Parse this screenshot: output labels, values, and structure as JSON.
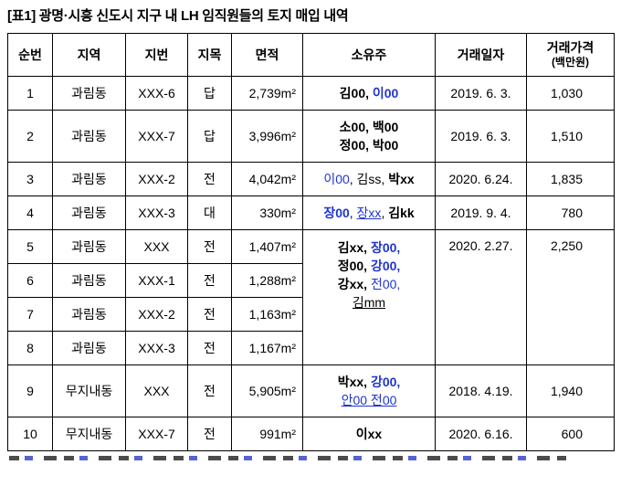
{
  "title": "[표1] 광명·시흥 신도시 지구 내 LH 임직원들의 토지 매입 내역",
  "colors": {
    "name_blue": "#1f35cf",
    "border": "#000000",
    "text": "#000000"
  },
  "table": {
    "headers": [
      {
        "t": "순번"
      },
      {
        "t": "지역"
      },
      {
        "t": "지번"
      },
      {
        "t": "지목"
      },
      {
        "t": "면적"
      },
      {
        "t": "소유주"
      },
      {
        "t": "거래일자"
      },
      {
        "t": "거래가격",
        "sub": "(백만원)"
      }
    ],
    "rows": [
      {
        "no": "1",
        "region": "과림동",
        "lot": "XXX-6",
        "cat": "답",
        "area": "2,739m²",
        "owner": {
          "span": 1,
          "lines": [
            [
              {
                "t": "김00,",
                "b": 1
              },
              {
                "t": " 이00",
                "c": 1,
                "b": 1
              }
            ]
          ]
        },
        "date": {
          "span": 1,
          "t": "2019. 6. 3."
        },
        "price": {
          "span": 1,
          "t": "1,030"
        }
      },
      {
        "no": "2",
        "region": "과림동",
        "lot": "XXX-7",
        "cat": "답",
        "area": "3,996m²",
        "owner": {
          "span": 1,
          "lines": [
            [
              {
                "t": "소00, 백00",
                "b": 1
              }
            ],
            [
              {
                "t": "정00, 박00",
                "b": 1
              }
            ]
          ]
        },
        "date": {
          "span": 1,
          "t": "2019. 6. 3."
        },
        "price": {
          "span": 1,
          "t": "1,510"
        }
      },
      {
        "no": "3",
        "region": "과림동",
        "lot": "XXX-2",
        "cat": "전",
        "area": "4,042m²",
        "owner": {
          "span": 1,
          "lines": [
            [
              {
                "t": "이00",
                "c": 1
              },
              {
                "t": ", 김ss, "
              },
              {
                "t": "박xx",
                "b": 1
              }
            ]
          ]
        },
        "date": {
          "span": 1,
          "t": "2020. 6.24."
        },
        "price": {
          "span": 1,
          "t": "1,835"
        }
      },
      {
        "no": "4",
        "region": "과림동",
        "lot": "XXX-3",
        "cat": "대",
        "area": "330m²",
        "owner": {
          "span": 1,
          "lines": [
            [
              {
                "t": "장00",
                "c": 1,
                "b": 1
              },
              {
                "t": ", "
              },
              {
                "t": "장xx",
                "c": 1,
                "u": 1
              },
              {
                "t": ", "
              },
              {
                "t": "김kk",
                "b": 1
              }
            ]
          ]
        },
        "date": {
          "span": 1,
          "t": "2019. 9. 4."
        },
        "price": {
          "span": 1,
          "t": "780"
        }
      },
      {
        "no": "5",
        "region": "과림동",
        "lot": "XXX",
        "cat": "전",
        "area": "1,407m²",
        "owner": {
          "span": 4,
          "lines": [
            [
              {
                "t": "김xx, ",
                "b": 1
              },
              {
                "t": "장00,",
                "c": 1,
                "b": 1
              }
            ],
            [
              {
                "t": "정00, ",
                "b": 1
              },
              {
                "t": "강00,",
                "c": 1,
                "b": 1
              }
            ],
            [
              {
                "t": "강xx, ",
                "b": 1
              },
              {
                "t": "전00,",
                "c": 1
              }
            ],
            [
              {
                "t": "김mm",
                "u": 1
              }
            ]
          ]
        },
        "date": {
          "span": 4,
          "t": "2020. 2.27."
        },
        "price": {
          "span": 4,
          "t": "2,250"
        }
      },
      {
        "no": "6",
        "region": "과림동",
        "lot": "XXX-1",
        "cat": "전",
        "area": "1,288m²"
      },
      {
        "no": "7",
        "region": "과림동",
        "lot": "XXX-2",
        "cat": "전",
        "area": "1,163m²"
      },
      {
        "no": "8",
        "region": "과림동",
        "lot": "XXX-3",
        "cat": "전",
        "area": "1,167m²"
      },
      {
        "no": "9",
        "region": "무지내동",
        "lot": "XXX",
        "cat": "전",
        "area": "5,905m²",
        "owner": {
          "span": 1,
          "lines": [
            [
              {
                "t": "박xx, ",
                "b": 1
              },
              {
                "t": "강00,",
                "c": 1,
                "b": 1
              }
            ],
            [
              {
                "t": "안00 전00",
                "c": 1,
                "u": 1
              }
            ]
          ]
        },
        "date": {
          "span": 1,
          "t": "2018. 4.19."
        },
        "price": {
          "span": 1,
          "t": "1,940"
        }
      },
      {
        "no": "10",
        "region": "무지내동",
        "lot": "XXX-7",
        "cat": "전",
        "area": "991m²",
        "owner": {
          "span": 1,
          "lines": [
            [
              {
                "t": "이xx",
                "b": 1
              }
            ]
          ]
        },
        "date": {
          "span": 1,
          "t": "2020. 6.16."
        },
        "price": {
          "span": 1,
          "t": "600"
        }
      }
    ]
  }
}
